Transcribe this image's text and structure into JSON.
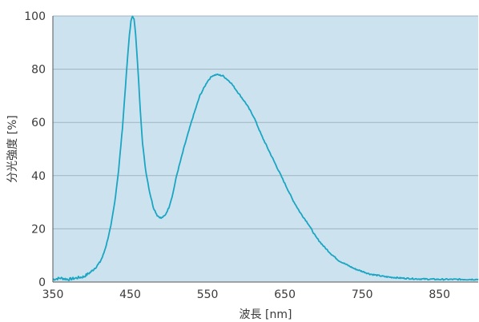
{
  "chart_data": {
    "type": "line",
    "xlabel": "波長 [nm]",
    "ylabel": "分光強度 [%]",
    "xlim": [
      350,
      900
    ],
    "ylim": [
      0,
      100
    ],
    "xticks": [
      350,
      450,
      550,
      650,
      750,
      850
    ],
    "yticks": [
      0,
      20,
      40,
      60,
      80,
      100
    ],
    "grid": "horizontal",
    "colors": {
      "plot_background": "#cce3ef",
      "line": "#1aa5c2",
      "grid": "#9fb4c0",
      "axis": "#555555"
    },
    "series": [
      {
        "points": [
          [
            350,
            1
          ],
          [
            360,
            1.5
          ],
          [
            370,
            1
          ],
          [
            380,
            1.5
          ],
          [
            390,
            2
          ],
          [
            400,
            4
          ],
          [
            410,
            7
          ],
          [
            415,
            10
          ],
          [
            420,
            15
          ],
          [
            425,
            21
          ],
          [
            430,
            30
          ],
          [
            435,
            42
          ],
          [
            440,
            58
          ],
          [
            443,
            70
          ],
          [
            446,
            82
          ],
          [
            449,
            93
          ],
          [
            451,
            98
          ],
          [
            453,
            100
          ],
          [
            455,
            99
          ],
          [
            457,
            93
          ],
          [
            460,
            80
          ],
          [
            463,
            65
          ],
          [
            466,
            52
          ],
          [
            470,
            42
          ],
          [
            475,
            34
          ],
          [
            480,
            28
          ],
          [
            485,
            25
          ],
          [
            490,
            24
          ],
          [
            495,
            25
          ],
          [
            500,
            28
          ],
          [
            505,
            33
          ],
          [
            510,
            40
          ],
          [
            520,
            51
          ],
          [
            530,
            61
          ],
          [
            540,
            70
          ],
          [
            550,
            75.5
          ],
          [
            556,
            77.5
          ],
          [
            562,
            78
          ],
          [
            570,
            77.5
          ],
          [
            580,
            75
          ],
          [
            590,
            71
          ],
          [
            600,
            67
          ],
          [
            610,
            62
          ],
          [
            620,
            55
          ],
          [
            630,
            49
          ],
          [
            640,
            43
          ],
          [
            650,
            37
          ],
          [
            660,
            31
          ],
          [
            670,
            26
          ],
          [
            680,
            22
          ],
          [
            690,
            17
          ],
          [
            700,
            13.5
          ],
          [
            710,
            10.5
          ],
          [
            720,
            8
          ],
          [
            730,
            6.5
          ],
          [
            740,
            5
          ],
          [
            750,
            4
          ],
          [
            760,
            3
          ],
          [
            770,
            2.5
          ],
          [
            780,
            2
          ],
          [
            800,
            1.5
          ],
          [
            820,
            1.2
          ],
          [
            850,
            1
          ],
          [
            880,
            1
          ],
          [
            900,
            1
          ]
        ]
      }
    ]
  }
}
